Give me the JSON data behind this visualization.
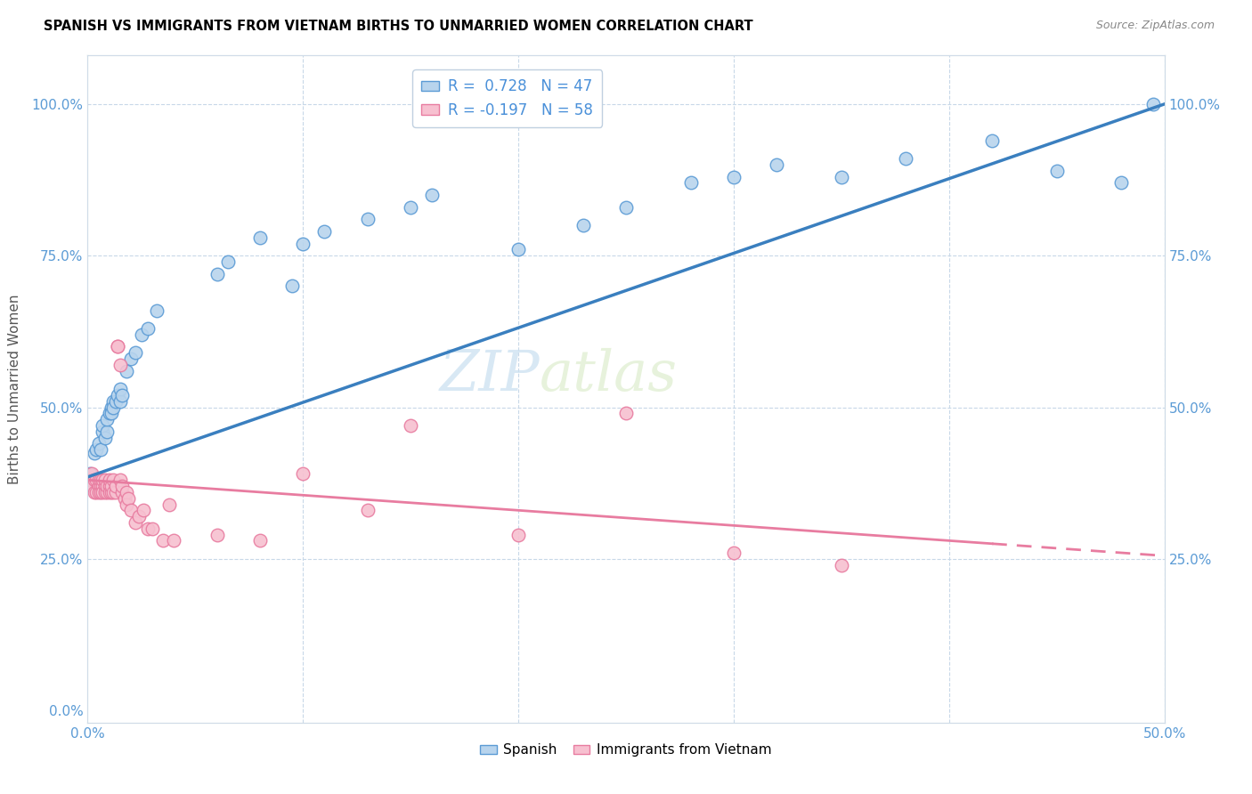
{
  "title": "SPANISH VS IMMIGRANTS FROM VIETNAM BIRTHS TO UNMARRIED WOMEN CORRELATION CHART",
  "source": "Source: ZipAtlas.com",
  "ylabel": "Births to Unmarried Women",
  "xlim": [
    0.0,
    0.5
  ],
  "ylim": [
    -0.02,
    1.08
  ],
  "ytick_values": [
    0.0,
    0.25,
    0.5,
    0.75,
    1.0
  ],
  "xtick_values": [
    0.0,
    0.1,
    0.2,
    0.3,
    0.4,
    0.5
  ],
  "color_spanish_fill": "#b8d4ed",
  "color_spanish_edge": "#5b9bd5",
  "color_vietnam_fill": "#f7c0d0",
  "color_vietnam_edge": "#e87ca0",
  "color_line_spanish": "#3a7fbf",
  "color_line_vietnam": "#e87ca0",
  "watermark_zip": "ZIP",
  "watermark_atlas": "atlas",
  "spanish_x": [
    0.001,
    0.003,
    0.004,
    0.005,
    0.006,
    0.007,
    0.007,
    0.008,
    0.009,
    0.009,
    0.01,
    0.011,
    0.011,
    0.012,
    0.012,
    0.013,
    0.014,
    0.015,
    0.015,
    0.016,
    0.018,
    0.02,
    0.022,
    0.025,
    0.028,
    0.032,
    0.06,
    0.065,
    0.08,
    0.095,
    0.1,
    0.11,
    0.13,
    0.15,
    0.16,
    0.2,
    0.23,
    0.25,
    0.28,
    0.3,
    0.32,
    0.35,
    0.38,
    0.42,
    0.45,
    0.48,
    0.495
  ],
  "spanish_y": [
    0.39,
    0.425,
    0.43,
    0.44,
    0.43,
    0.46,
    0.47,
    0.45,
    0.46,
    0.48,
    0.49,
    0.5,
    0.49,
    0.51,
    0.5,
    0.51,
    0.52,
    0.51,
    0.53,
    0.52,
    0.56,
    0.58,
    0.59,
    0.62,
    0.63,
    0.66,
    0.72,
    0.74,
    0.78,
    0.7,
    0.77,
    0.79,
    0.81,
    0.83,
    0.85,
    0.76,
    0.8,
    0.83,
    0.87,
    0.88,
    0.9,
    0.88,
    0.91,
    0.94,
    0.89,
    0.87,
    1.0
  ],
  "vietnam_x": [
    0.001,
    0.002,
    0.002,
    0.003,
    0.003,
    0.004,
    0.004,
    0.005,
    0.005,
    0.005,
    0.006,
    0.006,
    0.006,
    0.007,
    0.007,
    0.007,
    0.008,
    0.008,
    0.008,
    0.009,
    0.009,
    0.01,
    0.01,
    0.01,
    0.011,
    0.011,
    0.012,
    0.012,
    0.013,
    0.013,
    0.014,
    0.014,
    0.015,
    0.015,
    0.016,
    0.016,
    0.017,
    0.018,
    0.018,
    0.019,
    0.02,
    0.022,
    0.024,
    0.026,
    0.028,
    0.03,
    0.035,
    0.038,
    0.04,
    0.06,
    0.08,
    0.1,
    0.13,
    0.15,
    0.2,
    0.25,
    0.3,
    0.35
  ],
  "vietnam_y": [
    0.38,
    0.37,
    0.39,
    0.36,
    0.38,
    0.38,
    0.36,
    0.37,
    0.38,
    0.36,
    0.37,
    0.36,
    0.38,
    0.37,
    0.36,
    0.38,
    0.37,
    0.38,
    0.36,
    0.36,
    0.37,
    0.37,
    0.36,
    0.38,
    0.36,
    0.37,
    0.38,
    0.36,
    0.36,
    0.37,
    0.6,
    0.6,
    0.57,
    0.38,
    0.36,
    0.37,
    0.35,
    0.36,
    0.34,
    0.35,
    0.33,
    0.31,
    0.32,
    0.33,
    0.3,
    0.3,
    0.28,
    0.34,
    0.28,
    0.29,
    0.28,
    0.39,
    0.33,
    0.47,
    0.29,
    0.49,
    0.26,
    0.24
  ],
  "line_spanish_x0": 0.0,
  "line_spanish_y0": 0.385,
  "line_spanish_x1": 0.5,
  "line_spanish_y1": 1.0,
  "line_vietnam_x0": 0.0,
  "line_vietnam_y0": 0.38,
  "line_vietnam_x1": 0.5,
  "line_vietnam_y1": 0.255
}
